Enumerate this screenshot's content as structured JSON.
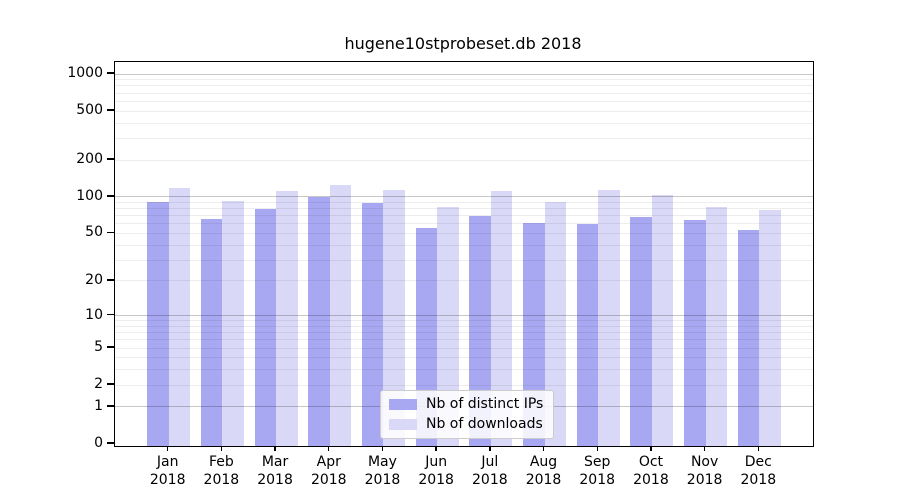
{
  "window": {
    "background": "#ffffff"
  },
  "chart_data": {
    "type": "bar",
    "title": "hugene10stprobeset.db 2018",
    "categories": [
      "Jan",
      "Feb",
      "Mar",
      "Apr",
      "May",
      "Jun",
      "Jul",
      "Aug",
      "Sep",
      "Oct",
      "Nov",
      "Dec"
    ],
    "year": "2018",
    "series": [
      {
        "name": "Nb of distinct IPs",
        "color": "#a8a8f2",
        "values": [
          91,
          66,
          80,
          99,
          89,
          55,
          70,
          61,
          60,
          68,
          64,
          53
        ]
      },
      {
        "name": "Nb of downloads",
        "color": "#d9d9f7",
        "values": [
          119,
          92,
          111,
          126,
          113,
          83,
          112,
          91,
          113,
          103,
          83,
          78
        ]
      }
    ],
    "yscale": "log1p",
    "yticks": [
      0,
      1,
      2,
      5,
      10,
      20,
      50,
      100,
      200,
      500,
      1000
    ],
    "ylim": [
      0,
      1250
    ],
    "grid": true,
    "grid_major_color": "#c8c8c8",
    "grid_minor_color": "#ededed",
    "legend_position": "lower center",
    "xlabel_format": "{month}\n{year}"
  }
}
